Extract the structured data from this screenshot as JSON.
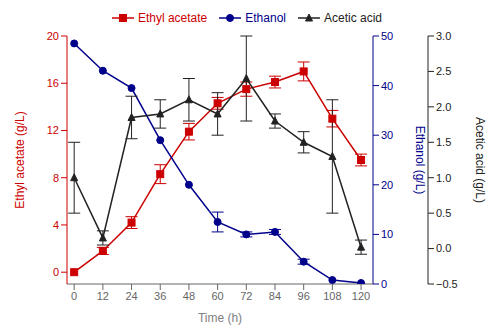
{
  "chart_data": {
    "type": "line",
    "xlabel": "Time (h)",
    "ylabel": "Ethyl acetate (g/L)",
    "y2label": "Ethanol (g/L)",
    "y3label": "Acetic acid (g/L)",
    "x": [
      0,
      12,
      24,
      36,
      48,
      60,
      72,
      84,
      96,
      108,
      120
    ],
    "xlim": [
      -3,
      125
    ],
    "xticks": [
      0,
      12,
      24,
      36,
      48,
      60,
      72,
      84,
      96,
      108,
      120
    ],
    "ylim": [
      -1,
      20
    ],
    "yticks": [
      0,
      4,
      8,
      12,
      16,
      20
    ],
    "y2lim": [
      0,
      50
    ],
    "y2ticks": [
      0,
      10,
      20,
      30,
      40,
      50
    ],
    "y3lim": [
      -0.5,
      3.0
    ],
    "y3ticks": [
      {
        "value": -0.5,
        "label": "−0.5"
      },
      {
        "value": 0,
        "label": "0.0"
      },
      0.5,
      {
        "value": 1,
        "label": "1.0"
      },
      1.5,
      {
        "value": 2,
        "label": "2.0"
      },
      2.5,
      {
        "value": 3,
        "label": "3.0"
      }
    ],
    "grid": false,
    "legend": "upper right",
    "series": [
      {
        "name": "Ethyl acetate",
        "color": "#cc0000",
        "marker": "square",
        "line_style": "solid",
        "axis": "y",
        "values": [
          0.0,
          1.8,
          4.2,
          8.3,
          11.9,
          14.3,
          15.5,
          16.1,
          17.0,
          13.0,
          9.5
        ],
        "errors": [
          0.0,
          0.3,
          0.5,
          0.8,
          0.7,
          0.5,
          0.6,
          0.5,
          0.8,
          0.7,
          0.5
        ]
      },
      {
        "name": "Ethanol",
        "color": "#00008B",
        "marker": "circle",
        "line_style": "solid",
        "axis": "y2",
        "values": [
          48.5,
          43.0,
          39.5,
          29.0,
          20.0,
          12.5,
          10.0,
          10.5,
          4.5,
          0.8,
          0.2
        ],
        "errors": [
          0.0,
          0.0,
          0.0,
          0.0,
          0.0,
          2.0,
          0.5,
          0.5,
          0.5,
          0.0,
          0.0
        ]
      },
      {
        "name": "Acetic acid",
        "color": "#222222",
        "marker": "triangle",
        "line_style": "solid",
        "axis": "y3",
        "values": [
          1.0,
          0.15,
          1.85,
          1.9,
          2.1,
          1.9,
          2.4,
          1.8,
          1.5,
          1.3,
          0.02
        ],
        "errors": [
          0.5,
          0.1,
          0.3,
          0.2,
          0.3,
          0.3,
          0.6,
          0.1,
          0.15,
          0.8,
          0.1
        ]
      }
    ]
  }
}
